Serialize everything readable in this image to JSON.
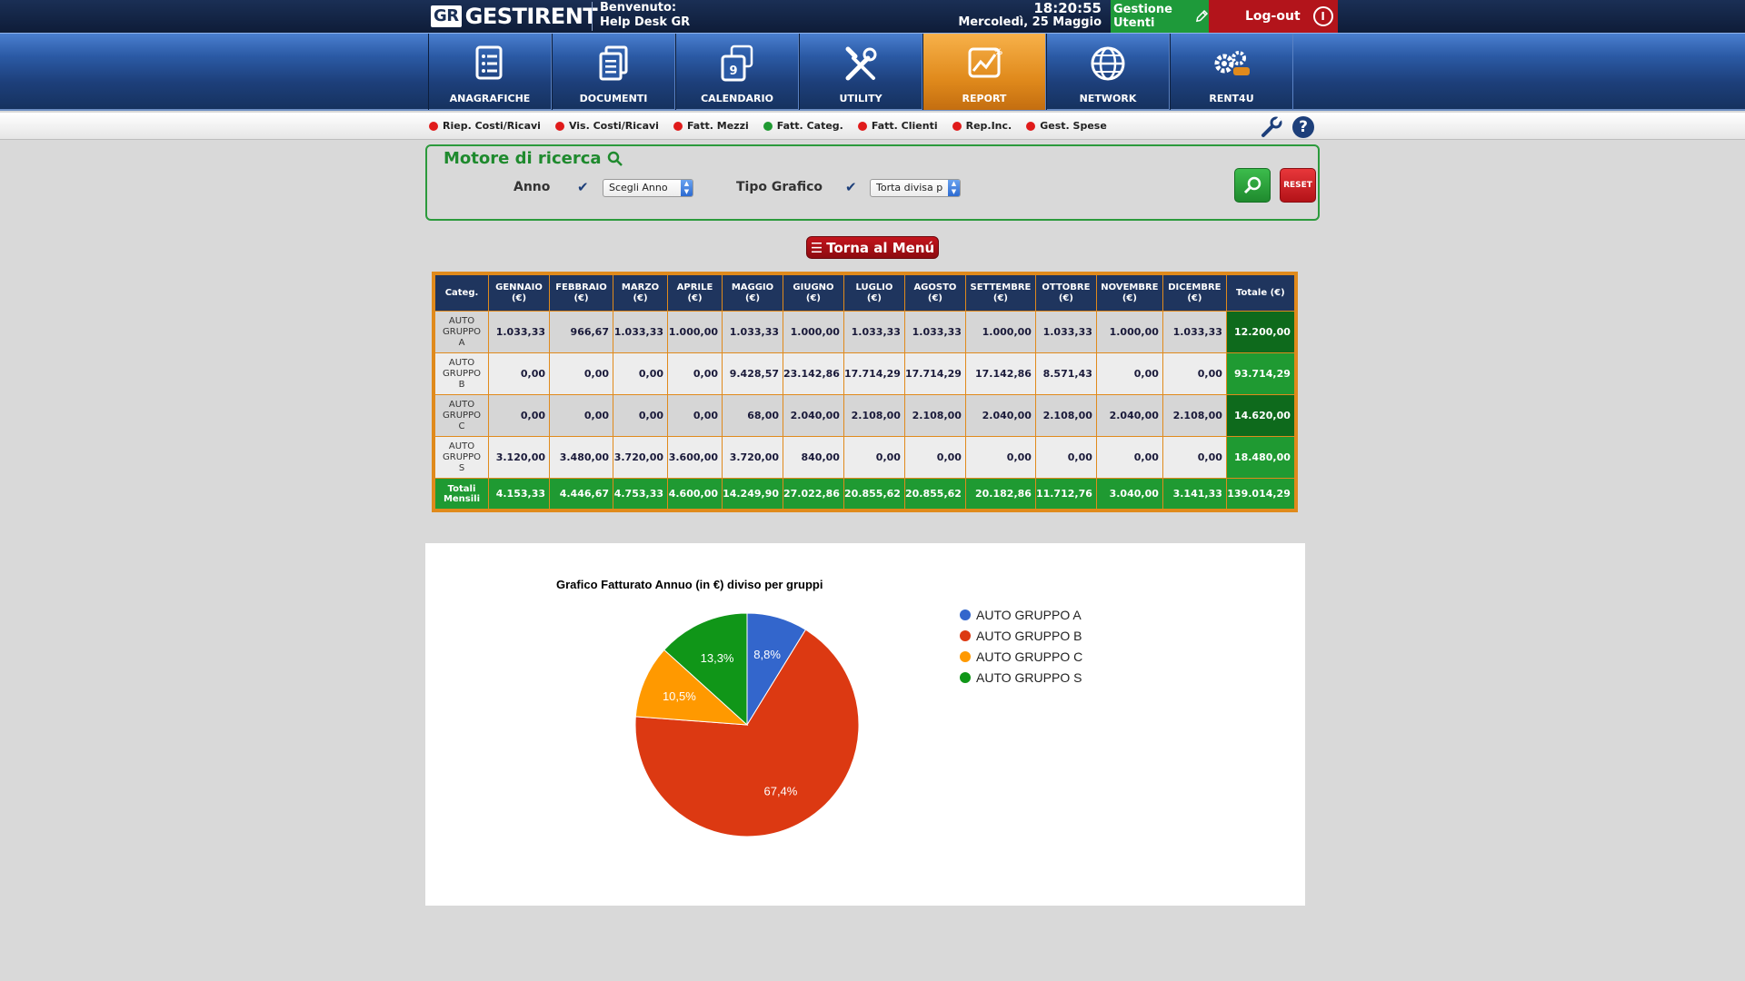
{
  "header": {
    "logo_prefix": "GR",
    "logo_text": "GESTIRENT",
    "welcome_line1": "Benvenuto:",
    "welcome_line2": "Help Desk GR",
    "time": "18:20:55",
    "date": "Mercoledì, 25 Maggio",
    "user_mgmt_label": "Gestione Utenti",
    "logout_label": "Log-out"
  },
  "nav": {
    "items": [
      {
        "label": "ANAGRAFICHE",
        "icon": "contact-list-icon"
      },
      {
        "label": "DOCUMENTI",
        "icon": "documents-icon"
      },
      {
        "label": "CALENDARIO",
        "icon": "calendar-icon"
      },
      {
        "label": "UTILITY",
        "icon": "tools-icon"
      },
      {
        "label": "REPORT",
        "icon": "report-chart-icon",
        "active": true
      },
      {
        "label": "NETWORK",
        "icon": "globe-icon"
      },
      {
        "label": "RENT4U",
        "icon": "gears-icon"
      }
    ]
  },
  "subnav": {
    "links": [
      {
        "label": "Riep. Costi/Ricavi",
        "color": "#e01b1b"
      },
      {
        "label": "Vis. Costi/Ricavi",
        "color": "#e01b1b"
      },
      {
        "label": "Fatt. Mezzi",
        "color": "#e01b1b"
      },
      {
        "label": "Fatt. Categ.",
        "color": "#1f9a32"
      },
      {
        "label": "Fatt. Clienti",
        "color": "#e01b1b"
      },
      {
        "label": "Rep.Inc.",
        "color": "#e01b1b"
      },
      {
        "label": "Gest. Spese",
        "color": "#e01b1b"
      }
    ]
  },
  "search": {
    "title": "Motore di ricerca",
    "year_label": "Anno",
    "year_value": "Scegli Anno",
    "chart_type_label": "Tipo Grafico",
    "chart_type_value": "Torta divisa p",
    "reset_label": "RESET"
  },
  "back_button_label": "Torna al Menú",
  "table": {
    "headers": [
      [
        "Categ.",
        ""
      ],
      [
        "GENNAIO",
        "(€)"
      ],
      [
        "FEBBRAIO",
        "(€)"
      ],
      [
        "MARZO",
        "(€)"
      ],
      [
        "APRILE",
        "(€)"
      ],
      [
        "MAGGIO",
        "(€)"
      ],
      [
        "GIUGNO",
        "(€)"
      ],
      [
        "LUGLIO",
        "(€)"
      ],
      [
        "AGOSTO",
        "(€)"
      ],
      [
        "SETTEMBRE",
        "(€)"
      ],
      [
        "OTTOBRE",
        "(€)"
      ],
      [
        "NOVEMBRE",
        "(€)"
      ],
      [
        "DICEMBRE",
        "(€)"
      ],
      [
        "Totale (€)",
        ""
      ]
    ],
    "rows": [
      {
        "cat": [
          "AUTO",
          "GRUPPO",
          "A"
        ],
        "values": [
          "1.033,33",
          "966,67",
          "1.033,33",
          "1.000,00",
          "1.033,33",
          "1.000,00",
          "1.033,33",
          "1.033,33",
          "1.000,00",
          "1.033,33",
          "1.000,00",
          "1.033,33"
        ],
        "total": "12.200,00"
      },
      {
        "cat": [
          "AUTO",
          "GRUPPO",
          "B"
        ],
        "values": [
          "0,00",
          "0,00",
          "0,00",
          "0,00",
          "9.428,57",
          "23.142,86",
          "17.714,29",
          "17.714,29",
          "17.142,86",
          "8.571,43",
          "0,00",
          "0,00"
        ],
        "total": "93.714,29"
      },
      {
        "cat": [
          "AUTO",
          "GRUPPO",
          "C"
        ],
        "values": [
          "0,00",
          "0,00",
          "0,00",
          "0,00",
          "68,00",
          "2.040,00",
          "2.108,00",
          "2.108,00",
          "2.040,00",
          "2.108,00",
          "2.040,00",
          "2.108,00"
        ],
        "total": "14.620,00"
      },
      {
        "cat": [
          "AUTO",
          "GRUPPO",
          "S"
        ],
        "values": [
          "3.120,00",
          "3.480,00",
          "3.720,00",
          "3.600,00",
          "3.720,00",
          "840,00",
          "0,00",
          "0,00",
          "0,00",
          "0,00",
          "0,00",
          "0,00"
        ],
        "total": "18.480,00"
      }
    ],
    "footer": {
      "cat": [
        "Totali",
        "Mensili"
      ],
      "values": [
        "4.153,33",
        "4.446,67",
        "4.753,33",
        "4.600,00",
        "14.249,90",
        "27.022,86",
        "20.855,62",
        "20.855,62",
        "20.182,86",
        "11.712,76",
        "3.040,00",
        "3.141,33"
      ],
      "total": "139.014,29"
    }
  },
  "chart_data": {
    "type": "pie",
    "title": "Grafico Fatturato Annuo (in €) diviso per gruppi",
    "legend_position": "right",
    "slices": [
      {
        "name": "AUTO GRUPPO A",
        "value": 12200.0,
        "label": "8,8%",
        "color": "#3366cc"
      },
      {
        "name": "AUTO GRUPPO B",
        "value": 93714.29,
        "label": "67,4%",
        "color": "#dc3912"
      },
      {
        "name": "AUTO GRUPPO C",
        "value": 14620.0,
        "label": "10,5%",
        "color": "#ff9900"
      },
      {
        "name": "AUTO GRUPPO S",
        "value": 18480.0,
        "label": "13,3%",
        "color": "#109618"
      }
    ]
  }
}
